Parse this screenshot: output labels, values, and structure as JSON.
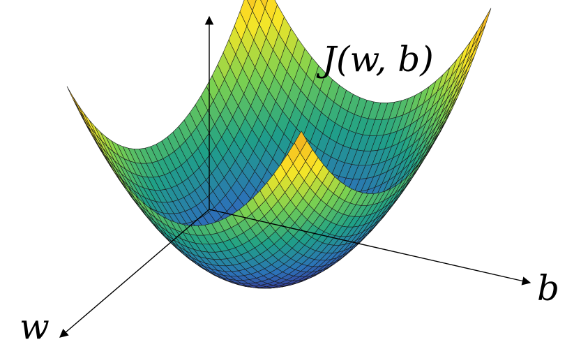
{
  "diagram": {
    "surface_label": "J(w, b)",
    "axis_labels": {
      "vertical": "",
      "b": "b",
      "w": "w"
    },
    "colors": {
      "axis": "#000000",
      "mesh_line": "#1a1a1a",
      "low": "#3b2a8f",
      "mid_low": "#2c72b8",
      "mid": "#1fa187",
      "mid_high": "#7ad151",
      "high": "#fde725",
      "peak": "#f0a91e"
    },
    "description_icons": [
      "bowl-surface-icon"
    ]
  }
}
